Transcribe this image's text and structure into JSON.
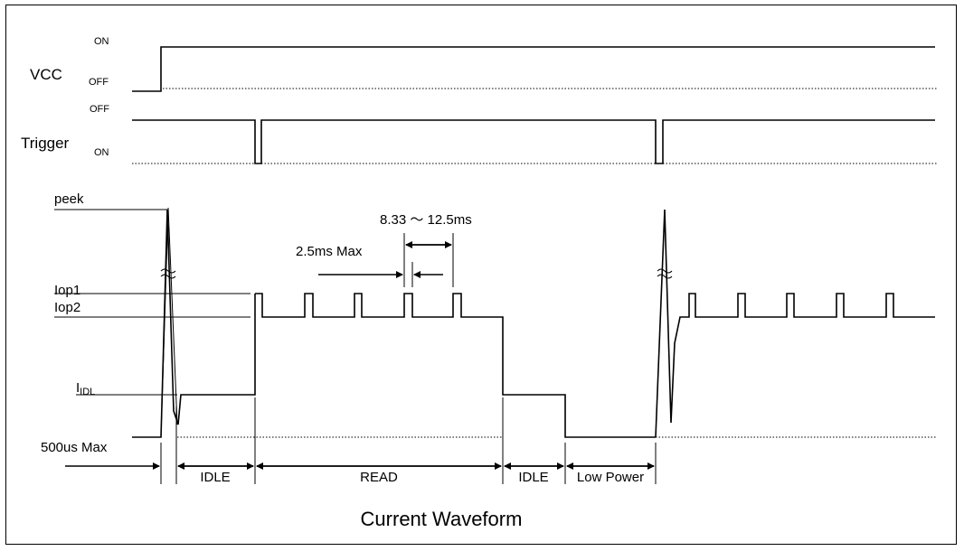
{
  "vcc": {
    "label": "VCC",
    "on": "ON",
    "off": "OFF"
  },
  "trigger": {
    "label": "Trigger",
    "off": "OFF",
    "on": "ON"
  },
  "current": {
    "peek": "peek",
    "iop1": "Iop1",
    "iop2": "Iop2",
    "idl_main": "I",
    "idl_sub": "IDL",
    "max500": "500us Max"
  },
  "timing": {
    "period": "8.33 ～ 12.5ms",
    "pulse": "2.5ms Max"
  },
  "phases": {
    "idle1": "IDLE",
    "read": "READ",
    "idle2": "IDLE",
    "low_power": "Low Power"
  },
  "title": "Current Waveform"
}
